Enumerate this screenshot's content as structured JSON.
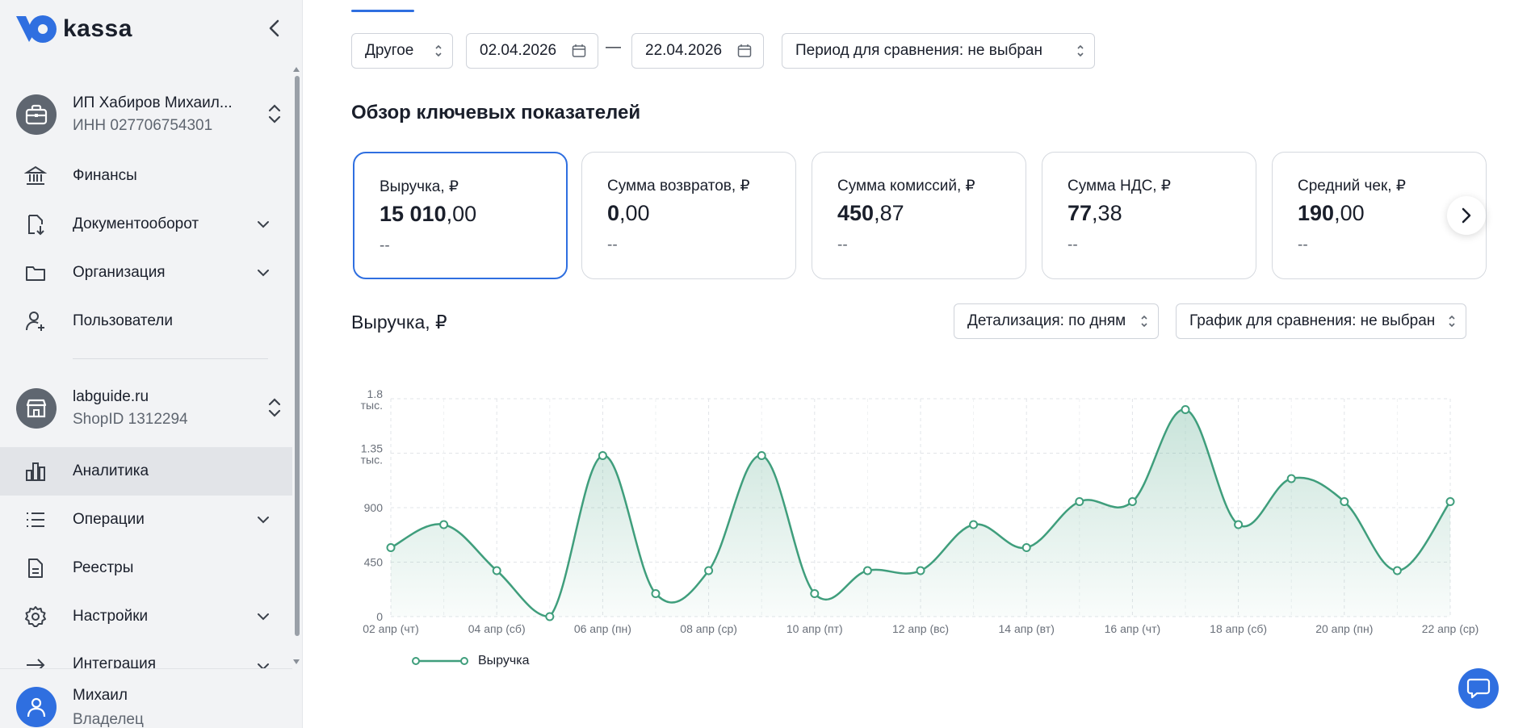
{
  "brand": {
    "name": "kassa",
    "accent": "#2f6fe0",
    "chart_color": "#3f9e7c"
  },
  "sidebar": {
    "account": {
      "name": "ИП Хабиров Михаил...",
      "inn": "ИНН 027706754301",
      "icon": "briefcase-icon"
    },
    "items_top": [
      {
        "label": "Финансы",
        "icon": "bank-icon",
        "has_chevron": false
      },
      {
        "label": "Документооборот",
        "icon": "document-download-icon",
        "has_chevron": true
      },
      {
        "label": "Организация",
        "icon": "folder-icon",
        "has_chevron": true
      },
      {
        "label": "Пользователи",
        "icon": "user-add-icon",
        "has_chevron": false
      }
    ],
    "shop": {
      "name": "labguide.ru",
      "id": "ShopID 1312294",
      "icon": "store-icon"
    },
    "items_shop": [
      {
        "label": "Аналитика",
        "icon": "bar-chart-icon",
        "has_chevron": false,
        "active": true
      },
      {
        "label": "Операции",
        "icon": "list-icon",
        "has_chevron": true
      },
      {
        "label": "Реестры",
        "icon": "file-icon",
        "has_chevron": false
      },
      {
        "label": "Настройки",
        "icon": "gear-icon",
        "has_chevron": true
      },
      {
        "label": "Интеграция",
        "icon": "arrow-right-icon",
        "has_chevron": true
      }
    ],
    "user": {
      "name": "Михаил",
      "role": "Владелец"
    }
  },
  "filters": {
    "period": "Другое",
    "date_from": "02.04.2026",
    "dash": "—",
    "date_to": "22.04.2026",
    "compare_period": "Период для сравнения: не выбран"
  },
  "section_title": "Обзор ключевых показателей",
  "kpis": [
    {
      "title": "Выручка, ₽",
      "int": "15 010",
      "frac": ",00",
      "delta": "--",
      "selected": true
    },
    {
      "title": "Сумма возвратов, ₽",
      "int": "0",
      "frac": ",00",
      "delta": "--"
    },
    {
      "title": "Сумма комиссий, ₽",
      "int": "450",
      "frac": ",87",
      "delta": "--"
    },
    {
      "title": "Сумма НДС, ₽",
      "int": "77",
      "frac": ",38",
      "delta": "--"
    },
    {
      "title": "Средний чек, ₽",
      "int": "190",
      "frac": ",00",
      "delta": "--"
    }
  ],
  "chart_header": {
    "title": "Выручка, ₽",
    "detail": "Детализация: по дням",
    "compare": "График для сравнения: не выбран"
  },
  "chart_data": {
    "type": "area",
    "x_tick_labels": [
      "02 апр (чт)",
      "04 апр (сб)",
      "06 апр (пн)",
      "08 апр (ср)",
      "10 апр (пт)",
      "12 апр (вс)",
      "14 апр (вт)",
      "16 апр (чт)",
      "18 апр (сб)",
      "20 апр (пн)",
      "22 апр (ср)"
    ],
    "y_ticks": [
      {
        "value": 0,
        "label": "0"
      },
      {
        "value": 450,
        "label": "450"
      },
      {
        "value": 900,
        "label": "900"
      },
      {
        "value": 1350,
        "label": "1.35 тыс."
      },
      {
        "value": 1800,
        "label": "1.8 тыс."
      }
    ],
    "ylim": [
      0,
      1800
    ],
    "grid": true,
    "legend_position": "bottom-left",
    "series": [
      {
        "name": "Выручка",
        "x": [
          "02 апр",
          "03 апр",
          "04 апр",
          "05 апр",
          "06 апр",
          "07 апр",
          "08 апр",
          "09 апр",
          "10 апр",
          "11 апр",
          "12 апр",
          "13 апр",
          "14 апр",
          "15 апр",
          "16 апр",
          "17 апр",
          "18 апр",
          "19 апр",
          "20 апр",
          "21 апр",
          "22 апр"
        ],
        "values": [
          570,
          760,
          380,
          0,
          1330,
          190,
          380,
          1330,
          190,
          380,
          380,
          760,
          570,
          950,
          950,
          1710,
          760,
          1140,
          950,
          380,
          950
        ]
      }
    ]
  },
  "chat": {
    "icon": "chat-icon"
  }
}
